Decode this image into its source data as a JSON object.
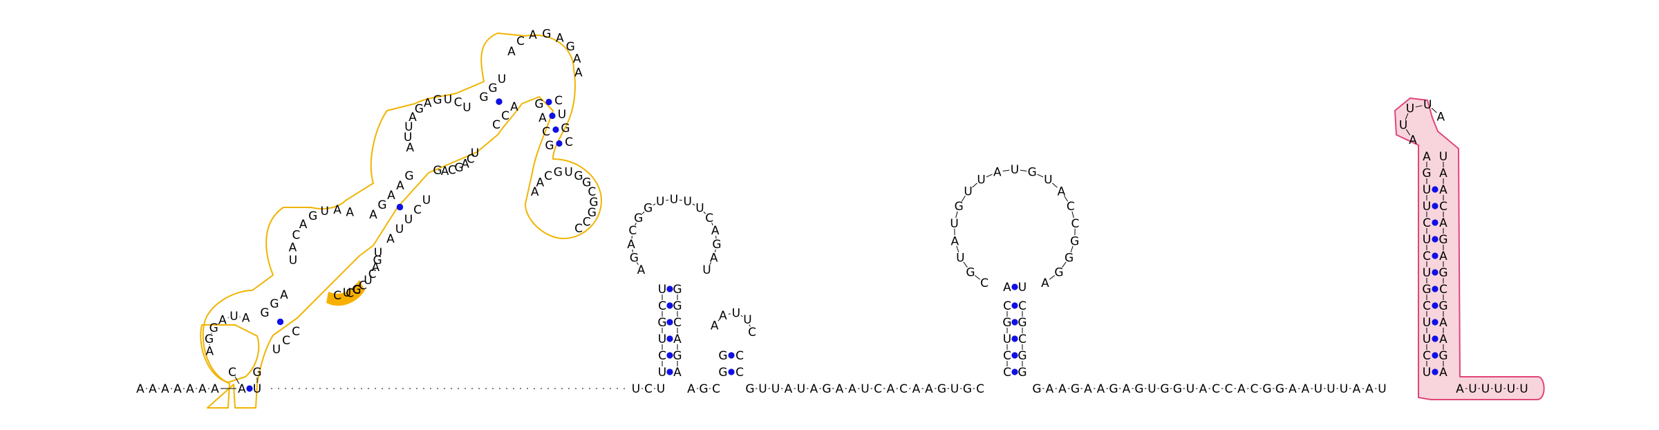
{
  "figure": {
    "sequence": "AAAAAAAACAGAGAUAGGAUCAGUAAAAGAAUUAGAGUCUGGUACAGAGAAGACGUCCGGUGGUACAGCCGAGCUUCGACUCUUGGAUGCCUCCGUAGUCUUUUUUUUUUUUUUUUUUUUUUUUUUUUUUUUUUUUUUUUUUUUUUUUUUUUUCUCUACGGUUUUCAGAUGAGCAGGACUGGAAUUCCGGUUAUAGAAUCACAAGUGCCGCCAGUAUGUUACCGGGAUCCGCGAAGAAGAGUGGUACCACGGAAUUUAAUUGUUCUCUGCUCUAUUUACAAAGGCGAGACAAAAUUUUU",
    "nucleotides_note": "",
    "pair_color": "#1010e6",
    "orange_outline": "#f0b400",
    "orange_fill": "#f7b000",
    "pink_outline": "#e0457a",
    "pink_fill": "#f8d5dd"
  },
  "tail5": [
    "A",
    "A",
    "A",
    "A",
    "A",
    "A",
    "A"
  ],
  "domain1": {
    "stem1_left": [
      "A",
      "C"
    ],
    "stem1_right": [
      "U",
      "G"
    ],
    "loop_a": [
      "A",
      "G",
      "G",
      "A",
      "U",
      "A"
    ],
    "stem2_left": [
      "G",
      "G",
      "A"
    ],
    "stem2_right": [
      "U",
      "C",
      "C"
    ],
    "loop_b_left": [
      "U",
      "A",
      "C",
      "A",
      "G",
      "U",
      "A",
      "A"
    ],
    "loop_b_right": [
      "C",
      "G",
      "C",
      "U",
      "C",
      "A",
      "G",
      "U"
    ],
    "stem3_left": [
      "A",
      "G",
      "A",
      "A",
      "G"
    ],
    "stem3_right": [
      "A",
      "U",
      "U",
      "C",
      "U"
    ],
    "loop_c_left": [
      "A",
      "U",
      "U",
      "A",
      "G",
      "A",
      "G",
      "U",
      "C",
      "U"
    ],
    "loop_c_right": [
      "G",
      "A",
      "C",
      "G",
      "A",
      "C",
      "U"
    ],
    "stem4_left": [
      "G",
      "G",
      "U"
    ],
    "stem4_right": [
      "C",
      "C",
      "A"
    ],
    "hairpin_top": [
      "A",
      "C",
      "A",
      "G",
      "A",
      "G",
      "A",
      "A"
    ],
    "stem5_left": [
      "G",
      "A",
      "C",
      "G"
    ],
    "stem5_right": [
      "C",
      "U",
      "G",
      "C"
    ],
    "small_loop": [
      "A",
      "A",
      "C",
      "G",
      "U",
      "G",
      "G",
      "C",
      "G",
      "G",
      "C",
      "C"
    ],
    "highlight": [
      "C",
      "U",
      "C"
    ]
  },
  "hairpin2": {
    "stem_left": [
      "U",
      "C",
      "U",
      "G",
      "C",
      "U"
    ],
    "stem_right": [
      "A",
      "G",
      "A",
      "C",
      "G",
      "G"
    ],
    "loop": [
      "A",
      "G",
      "A",
      "C",
      "G",
      "G",
      "U",
      "U",
      "U",
      "U",
      "C",
      "A",
      "G",
      "A",
      "U"
    ]
  },
  "hairpin3": {
    "stem_left": [
      "G",
      "G"
    ],
    "stem_right": [
      "C",
      "C"
    ],
    "loop": [
      "A",
      "A",
      "U",
      "U",
      "C"
    ]
  },
  "linker1": [
    "U",
    "C",
    "U"
  ],
  "linker2": [
    "A",
    "G",
    "C"
  ],
  "linker3": [
    "G",
    "U",
    "U",
    "A",
    "U",
    "A",
    "G",
    "A",
    "A",
    "U",
    "C",
    "A",
    "C",
    "A",
    "A",
    "G",
    "U",
    "G",
    "C"
  ],
  "hairpin4": {
    "stem_left": [
      "C",
      "C",
      "U",
      "G",
      "C"
    ],
    "stem_right": [
      "G",
      "G",
      "C",
      "G",
      "C"
    ],
    "stem_top_left": "A",
    "stem_top_right": "U",
    "loop": [
      "C",
      "G",
      "U",
      "A",
      "U",
      "G",
      "U",
      "U",
      "A",
      "U",
      "G",
      "U",
      "A",
      "C",
      "C",
      "G",
      "G",
      "G",
      "A"
    ]
  },
  "linker4": [
    "G",
    "A",
    "A",
    "G",
    "A",
    "A",
    "G",
    "A",
    "G",
    "U",
    "G",
    "G",
    "U",
    "A",
    "C",
    "C",
    "A",
    "C",
    "G",
    "G",
    "A",
    "A",
    "U",
    "U",
    "U",
    "A",
    "A",
    "U"
  ],
  "terminator": {
    "stem_left": [
      "U",
      "C",
      "U",
      "U",
      "C",
      "G",
      "U",
      "C",
      "U",
      "C",
      "U",
      "U",
      "G",
      "A"
    ],
    "stem_right": [
      "A",
      "G",
      "A",
      "A",
      "G",
      "C",
      "G",
      "A",
      "G",
      "A",
      "C",
      "A",
      "A",
      "U"
    ],
    "loop": [
      "A",
      "U",
      "U",
      "U",
      "A"
    ]
  },
  "tail3": [
    "A",
    "U",
    "U",
    "U",
    "U",
    "U"
  ]
}
